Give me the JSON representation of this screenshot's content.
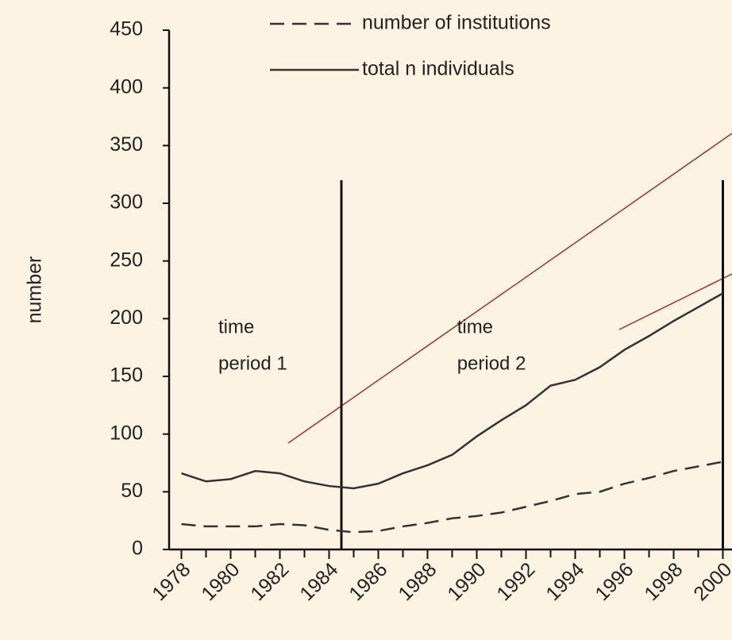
{
  "chart_data": {
    "type": "line",
    "y_label": "number",
    "x": [
      1978,
      1979,
      1980,
      1981,
      1982,
      1983,
      1984,
      1985,
      1986,
      1987,
      1988,
      1989,
      1990,
      1991,
      1992,
      1993,
      1994,
      1995,
      1996,
      1997,
      1998,
      1999,
      2000
    ],
    "series": [
      {
        "name": "number of institutions",
        "color": "#333333",
        "dash": true,
        "values": [
          22,
          20,
          20,
          20,
          22,
          21,
          17,
          15,
          16,
          20,
          23,
          27,
          29,
          32,
          37,
          42,
          48,
          50,
          57,
          62,
          68,
          72,
          76
        ]
      },
      {
        "name": "total n individuals",
        "color": "#333333",
        "dash": false,
        "values": [
          66,
          59,
          61,
          68,
          66,
          59,
          55,
          53,
          57,
          66,
          73,
          82,
          98,
          112,
          125,
          142,
          147,
          158,
          173,
          185,
          198,
          210,
          222
        ]
      }
    ],
    "annotations": [
      {
        "lines": [
          "time",
          "period 1"
        ],
        "x": 1979.5,
        "y": 200
      },
      {
        "lines": [
          "time",
          "period  2"
        ],
        "x": 1989.2,
        "y": 200
      }
    ],
    "period_dividers": [
      1984.5,
      2000
    ],
    "divider_top": 320,
    "xlim": [
      1977.5,
      2000.5
    ],
    "xticks": [
      1978,
      1980,
      1982,
      1984,
      1986,
      1988,
      1990,
      1992,
      1994,
      1996,
      1998,
      2000
    ],
    "ylim": [
      0,
      450
    ],
    "yticks": [
      0,
      50,
      100,
      150,
      200,
      250,
      300,
      350,
      400,
      450
    ]
  }
}
